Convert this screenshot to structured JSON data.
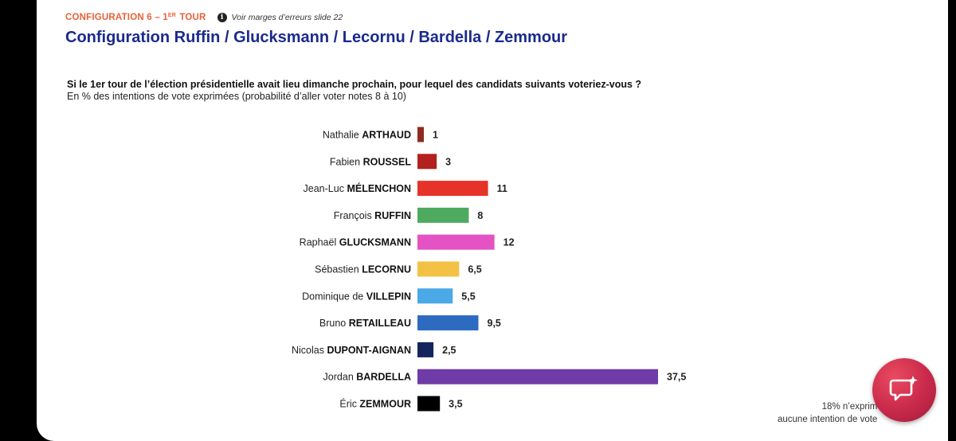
{
  "header": {
    "config_label": "CONFIGURATION 6 – 1",
    "config_label_sup": "ER",
    "config_label_end": " TOUR",
    "note": "Voir marges d’erreurs slide 22",
    "title": "Configuration Ruffin / Glucksmann / Lecornu / Bardella / Zemmour"
  },
  "question": {
    "main": "Si le 1er tour de l’élection présidentielle avait lieu dimanche prochain, pour lequel des candidats suivants voteriez-vous ?",
    "sub": "En % des intentions de vote exprimées (probabilité d’aller voter notes 8 à 10)"
  },
  "chart_data": {
    "type": "bar",
    "orientation": "horizontal",
    "categories": [
      {
        "first": "Nathalie",
        "last": "ARTHAUD"
      },
      {
        "first": "Fabien",
        "last": "ROUSSEL"
      },
      {
        "first": "Jean-Luc",
        "last": "MÉLENCHON"
      },
      {
        "first": "François",
        "last": "RUFFIN"
      },
      {
        "first": "Raphaël",
        "last": "GLUCKSMANN"
      },
      {
        "first": "Sébastien",
        "last": "LECORNU"
      },
      {
        "first": "Dominique de",
        "last": "VILLEPIN"
      },
      {
        "first": "Bruno",
        "last": "RETAILLEAU"
      },
      {
        "first": "Nicolas",
        "last": "DUPONT-AIGNAN"
      },
      {
        "first": "Jordan",
        "last": "BARDELLA"
      },
      {
        "first": "Éric",
        "last": "ZEMMOUR"
      }
    ],
    "values": [
      1,
      3,
      11,
      8,
      12,
      6.5,
      5.5,
      9.5,
      2.5,
      37.5,
      3.5
    ],
    "value_labels": [
      "1",
      "3",
      "11",
      "8",
      "12",
      "6,5",
      "5,5",
      "9,5",
      "2,5",
      "37,5",
      "3,5"
    ],
    "colors": [
      "#8e2a1f",
      "#b3211e",
      "#e63329",
      "#4daa5f",
      "#e452c3",
      "#f3c245",
      "#4aa9e6",
      "#2c6bc0",
      "#14255e",
      "#6f3ba6",
      "#000000"
    ],
    "xlim": [
      0,
      37.5
    ]
  },
  "footnote": {
    "line1": "18% n’exprim",
    "line2": "aucune intention de vote"
  }
}
